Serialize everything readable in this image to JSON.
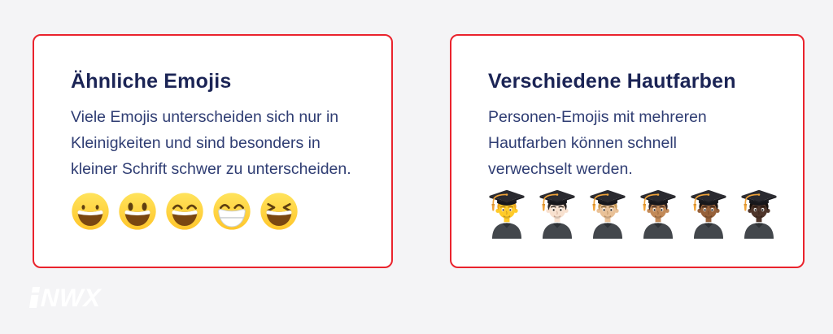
{
  "theme": {
    "page_bg": "#F4F4F6",
    "card_bg": "#FFFFFF",
    "accent": "#EA232D",
    "heading": "#1B2455",
    "body_text": "#2F3D73",
    "logo": "#FFFFFF"
  },
  "cards": [
    {
      "title": "Ähnliche Emojis",
      "body_lines": [
        "Viele Emojis unterscheiden sich nur in",
        "Kleinigkeiten und sind besonders in",
        "kleiner Schrift schwer zu unterscheiden."
      ],
      "emojis": [
        {
          "name": "grinning-face",
          "char": "😀",
          "symbol": "sym-grinning"
        },
        {
          "name": "grinning-face-with-big-eyes",
          "char": "😃",
          "symbol": "sym-big-eyes"
        },
        {
          "name": "grinning-face-with-smiling-eyes",
          "char": "😄",
          "symbol": "sym-smiling-eyes"
        },
        {
          "name": "beaming-face-with-smiling-eyes",
          "char": "😁",
          "symbol": "sym-beaming"
        },
        {
          "name": "grinning-squinting-face",
          "char": "😆",
          "symbol": "sym-squinting"
        }
      ]
    },
    {
      "title": "Verschiedene Hautfarben",
      "body_lines": [
        "Personen-Emojis mit mehreren",
        "Hautfarben können schnell",
        "verwechselt werden."
      ],
      "emojis": [
        {
          "name": "man-student",
          "char": "👨‍🎓",
          "symbol": "sym-student",
          "type": "student",
          "colors": {
            "skin": "#FFCB29",
            "hair": "#EBA51F",
            "brow": "#B57E14",
            "mouth": "#A8741B",
            "pupil": "#5C3A15"
          }
        },
        {
          "name": "man-student-light-skin",
          "char": "👨🏻‍🎓",
          "symbol": "sym-student",
          "type": "student",
          "colors": {
            "skin": "#F8E1CF",
            "hair": "#2A2422",
            "brow": "#38302C",
            "mouth": "#B98C78",
            "pupil": "#241509"
          }
        },
        {
          "name": "man-student-medium-light-skin",
          "char": "👨🏼‍🎓",
          "symbol": "sym-student",
          "type": "student",
          "colors": {
            "skin": "#E9C197",
            "hair": "#C79752",
            "brow": "#7F5E31",
            "mouth": "#A5794C",
            "pupil": "#241509"
          }
        },
        {
          "name": "man-student-medium-skin",
          "char": "👨🏽‍🎓",
          "symbol": "sym-student",
          "type": "student",
          "colors": {
            "skin": "#C28A58",
            "hair": "#332420",
            "brow": "#46302A",
            "mouth": "#7E5230",
            "pupil": "#241509"
          }
        },
        {
          "name": "man-student-medium-dark-skin",
          "char": "👨🏾‍🎓",
          "symbol": "sym-student",
          "type": "student",
          "colors": {
            "skin": "#96613A",
            "hair": "#201713",
            "brow": "#33231C",
            "mouth": "#5E3A22",
            "pupil": "#17100C"
          }
        },
        {
          "name": "man-student-dark-skin",
          "char": "👨🏿‍🎓",
          "symbol": "sym-student",
          "type": "student",
          "colors": {
            "skin": "#4F362B",
            "hair": "#17100D",
            "brow": "#241812",
            "mouth": "#2E1D16",
            "pupil": "#120C08"
          }
        }
      ]
    }
  ],
  "logo": {
    "text": "INWX",
    "letters_after_i": "NWX"
  }
}
